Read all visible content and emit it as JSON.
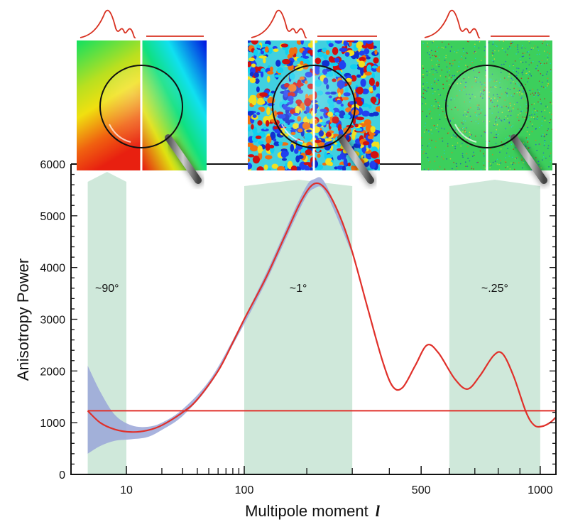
{
  "chart_data": {
    "type": "line",
    "title": "",
    "xlabel": "Multipole moment",
    "xlabel_symbol": "l",
    "ylabel": "Anisotropy Power",
    "xlim": [
      3.4,
      1080
    ],
    "ylim": [
      0,
      6000
    ],
    "x_scale": "log below 100, compressed power scale above 100",
    "x_ticks": [
      {
        "value": 10,
        "label": "10"
      },
      {
        "value": 100,
        "label": "100"
      },
      {
        "value": 500,
        "label": "500"
      },
      {
        "value": 1000,
        "label": "1000"
      }
    ],
    "x_minor_ticks": [
      20,
      30,
      40,
      50,
      60,
      70,
      80,
      90,
      200,
      300,
      400,
      600,
      700,
      800,
      900
    ],
    "y_ticks": [
      {
        "value": 0,
        "label": "0"
      },
      {
        "value": 1000,
        "label": "1000"
      },
      {
        "value": 2000,
        "label": "2000"
      },
      {
        "value": 3000,
        "label": "3000"
      },
      {
        "value": 4000,
        "label": "4000"
      },
      {
        "value": 5000,
        "label": "5000"
      },
      {
        "value": 6000,
        "label": "6000"
      }
    ],
    "grid": false,
    "curve": {
      "color": "#e0302a",
      "x": [
        4.7,
        6,
        8,
        11,
        15,
        20,
        30,
        40,
        60,
        80,
        100,
        130,
        160,
        190,
        215,
        240,
        270,
        300,
        340,
        380,
        410,
        440,
        480,
        520,
        560,
        620,
        670,
        720,
        780,
        820,
        870,
        930,
        970,
        1010,
        1050,
        1080
      ],
      "y": [
        1230,
        1000,
        870,
        820,
        850,
        950,
        1200,
        1450,
        2000,
        2550,
        3000,
        3800,
        4600,
        5300,
        5620,
        5500,
        5000,
        4300,
        3200,
        2200,
        1700,
        1680,
        2100,
        2500,
        2350,
        1850,
        1650,
        1900,
        2300,
        2330,
        1900,
        1200,
        950,
        930,
        1000,
        1100
      ]
    },
    "uncertainty_band": {
      "color": "#9aa6d8",
      "x": [
        4.7,
        6,
        8,
        11,
        15,
        20,
        30,
        50,
        80,
        130,
        190,
        215,
        240,
        300
      ],
      "lower": [
        400,
        550,
        650,
        680,
        720,
        860,
        1130,
        1700,
        2500,
        3720,
        5200,
        5530,
        5420,
        4260
      ],
      "upper": [
        2100,
        1600,
        1150,
        950,
        920,
        1000,
        1260,
        1800,
        2600,
        3880,
        5400,
        5710,
        5590,
        4340
      ]
    },
    "reference_line": {
      "y": 1230,
      "color": "#e0302a"
    },
    "bands": [
      {
        "x_range": [
          4.7,
          10
        ],
        "label": "~90°",
        "label_y": 3600
      },
      {
        "x_range": [
          100,
          300
        ],
        "label": "~1°",
        "label_y": 3600
      },
      {
        "x_range": [
          600,
          1000
        ],
        "label": "~.25°",
        "label_y": 3600
      }
    ],
    "band_color": "#cfe8da",
    "insets": [
      {
        "name": "large-scale-map",
        "style": "smooth"
      },
      {
        "name": "degree-scale-map",
        "style": "blobs"
      },
      {
        "name": "small-scale-map",
        "style": "fine-noise"
      }
    ]
  }
}
